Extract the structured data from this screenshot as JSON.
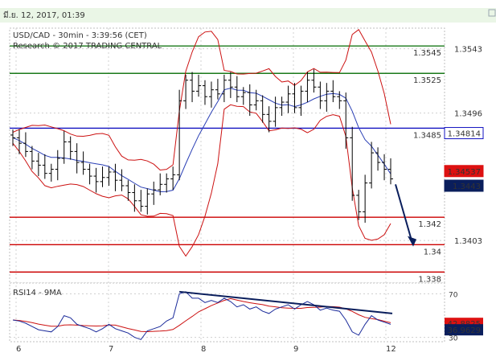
{
  "header": {
    "date": "มี.ย. 12, 2017, 01:39"
  },
  "chart_data": {
    "type": "candlestick",
    "title": "USD/CAD - 30min - 3:39:56 (CET)",
    "subtitle": "Research © 2017 TRADING CENTRAL",
    "ylim": [
      1.3372,
      1.3558
    ],
    "y_ticks": [
      "1.3543",
      "1.3496",
      "1.3403"
    ],
    "x_ticks": [
      "6",
      "7",
      "8",
      "9",
      "12"
    ],
    "levels": [
      {
        "label": "1.3545",
        "value": 1.3545,
        "color": "#1a7a1a"
      },
      {
        "label": "1.3525",
        "value": 1.3525,
        "color": "#1a7a1a"
      },
      {
        "label": "1.3485",
        "value": 1.3485,
        "color": "#1010c0"
      },
      {
        "label": "1.342",
        "value": 1.342,
        "color": "#cc0000"
      },
      {
        "label": "1.34",
        "value": 1.34,
        "color": "#cc0000"
      },
      {
        "label": "1.338",
        "value": 1.338,
        "color": "#cc0000"
      }
    ],
    "price_tags": [
      {
        "label": "1.34814",
        "value": 1.34814,
        "bg": "#ffffff",
        "fg": "#000000",
        "border": "#1010c0"
      },
      {
        "label": "1.34537",
        "value": 1.34537,
        "bg": "#dd1111",
        "fg": "#ffffff",
        "border": "#dd1111"
      },
      {
        "label": "1.3443",
        "value": 1.3443,
        "bg": "#0a1e5c",
        "fg": "#ffffff",
        "border": "#0a1e5c"
      }
    ],
    "series": [
      {
        "name": "price",
        "close": [
          1.3478,
          1.3474,
          1.3468,
          1.3461,
          1.3458,
          1.3452,
          1.3455,
          1.3463,
          1.3475,
          1.3468,
          1.346,
          1.3455,
          1.345,
          1.3446,
          1.3449,
          1.3453,
          1.3447,
          1.3443,
          1.3438,
          1.3432,
          1.3428,
          1.3437,
          1.344,
          1.3444,
          1.3448,
          1.3451,
          1.3505,
          1.352,
          1.3512,
          1.3516,
          1.3508,
          1.3513,
          1.351,
          1.352,
          1.3515,
          1.3508,
          1.3511,
          1.3502,
          1.3505,
          1.3495,
          1.349,
          1.35,
          1.3504,
          1.351,
          1.35,
          1.3512,
          1.352,
          1.3515,
          1.3505,
          1.3512,
          1.3508,
          1.3505,
          1.3478,
          1.3436,
          1.3424,
          1.3445,
          1.3467,
          1.346,
          1.3455,
          1.3448
        ]
      }
    ],
    "rsi": {
      "title": "RSI14 - 9MA",
      "ylim": [
        26,
        80
      ],
      "y_ticks": [
        "70",
        "30"
      ],
      "values": [
        46,
        45,
        43,
        40,
        37,
        36,
        35,
        40,
        50,
        48,
        42,
        40,
        38,
        35,
        38,
        42,
        38,
        36,
        34,
        30,
        28,
        36,
        38,
        40,
        45,
        48,
        70,
        72,
        66,
        66,
        62,
        64,
        62,
        66,
        63,
        58,
        60,
        56,
        58,
        54,
        52,
        56,
        58,
        60,
        56,
        60,
        63,
        60,
        55,
        57,
        55,
        54,
        46,
        35,
        32,
        42,
        50,
        46,
        44,
        42
      ],
      "tags": [
        {
          "label": "42.8825",
          "value": 42.8825,
          "bg": "#dd1111",
          "fg": "#ffffff"
        },
        {
          "label": "36.9629",
          "value": 36.9629,
          "bg": "#0a1e5c",
          "fg": "#ffffff"
        }
      ]
    }
  }
}
